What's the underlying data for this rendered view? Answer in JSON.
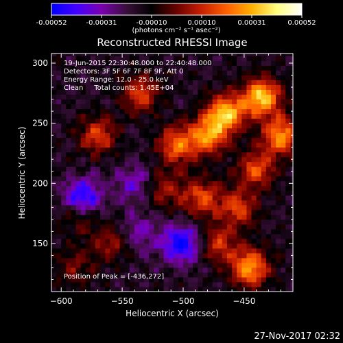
{
  "chart_data": {
    "type": "heatmap",
    "title": "Reconstructed RHESSI Image",
    "xlabel": "Heliocentric X (arcsec)",
    "ylabel": "Heliocentric Y (arcsec)",
    "xlim": [
      -608,
      -410
    ],
    "ylim": [
      110,
      308
    ],
    "x_ticks": [
      -600,
      -550,
      -500,
      -450
    ],
    "y_ticks": [
      150,
      200,
      250,
      300
    ],
    "colorbar": {
      "ticks": [
        "-0.00052",
        "-0.00031",
        "-0.00010",
        "0.00010",
        "0.00031",
        "0.00052"
      ],
      "unit_label": "(photons cm⁻² s⁻¹ asec⁻²)",
      "colors": [
        "#0000ff",
        "#4400ff",
        "#7a00b0",
        "#3a0f3a",
        "#000000",
        "#6a0000",
        "#c82000",
        "#ff6000",
        "#ffb000",
        "#ffff80",
        "#ffffff"
      ]
    },
    "annotations": [
      "19-Jun-2015 22:30:48.000 to 22:40:48.000",
      "Detectors: 3F 5F 6F 7F 8F 9F, Att 0",
      "Energy Range: 12.0 - 25.0 keV",
      "Clean     Total counts: 1.45E+04"
    ],
    "peak_label": "Position of Peak = [-436,272]",
    "peak_position": [
      -436,
      272
    ],
    "features": [
      {
        "x": -465,
        "y": 258,
        "intensity": 0.95
      },
      {
        "x": -436,
        "y": 272,
        "intensity": 1.0
      },
      {
        "x": -420,
        "y": 240,
        "intensity": 0.8
      },
      {
        "x": -480,
        "y": 240,
        "intensity": 0.75
      },
      {
        "x": -505,
        "y": 232,
        "intensity": 0.7
      },
      {
        "x": -535,
        "y": 275,
        "intensity": 0.55
      },
      {
        "x": -440,
        "y": 212,
        "intensity": 0.6
      },
      {
        "x": -455,
        "y": 180,
        "intensity": 0.55
      },
      {
        "x": -485,
        "y": 188,
        "intensity": 0.6
      },
      {
        "x": -445,
        "y": 130,
        "intensity": 0.85
      },
      {
        "x": -470,
        "y": 150,
        "intensity": 0.5
      },
      {
        "x": -570,
        "y": 240,
        "intensity": 0.55
      },
      {
        "x": -585,
        "y": 175,
        "intensity": 0.45
      },
      {
        "x": -560,
        "y": 150,
        "intensity": 0.35
      },
      {
        "x": -515,
        "y": 195,
        "intensity": 0.4
      },
      {
        "x": -590,
        "y": 130,
        "intensity": 0.3
      },
      {
        "x": -583,
        "y": 187,
        "intensity": -0.8
      },
      {
        "x": -502,
        "y": 150,
        "intensity": -0.7
      },
      {
        "x": -540,
        "y": 200,
        "intensity": -0.35
      },
      {
        "x": -535,
        "y": 160,
        "intensity": -0.3
      }
    ]
  },
  "footer": {
    "timestamp": "27-Nov-2017 02:32"
  }
}
